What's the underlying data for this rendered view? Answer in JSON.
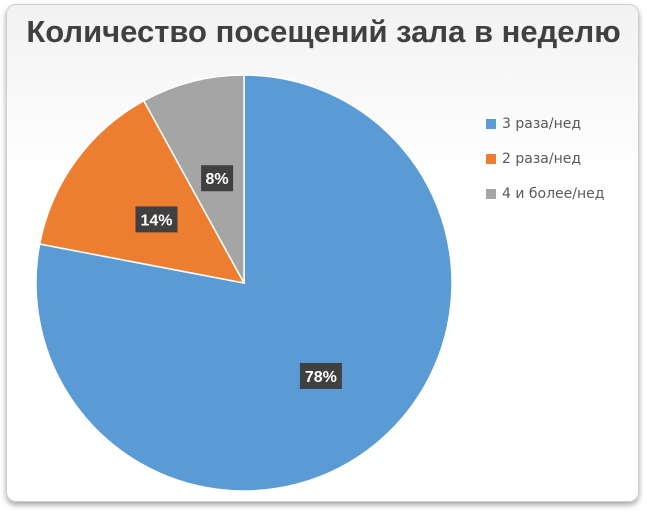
{
  "chart_data": {
    "type": "pie",
    "title": "Количество посещений зала в неделю",
    "categories": [
      "3 раза/нед",
      "2 раза/нед",
      "4 и более/нед"
    ],
    "values": [
      78,
      14,
      8
    ],
    "data_labels": [
      "78%",
      "14%",
      "8%"
    ],
    "colors": [
      "#5b9bd5",
      "#ed7d31",
      "#a5a5a5"
    ],
    "legend_position": "right"
  }
}
